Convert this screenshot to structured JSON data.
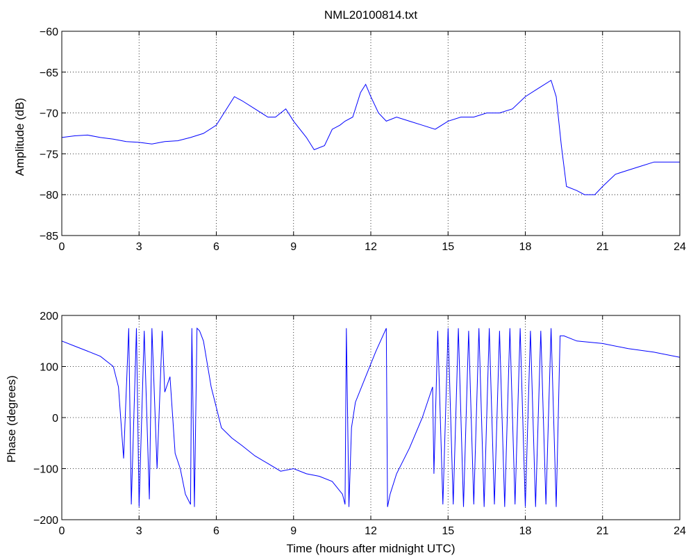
{
  "figure_title": "NML20100814.txt",
  "chart_data": [
    {
      "type": "line",
      "title": "NML20100814.txt",
      "xlabel": "",
      "ylabel": "Amplitude (dB)",
      "xlim": [
        0,
        24
      ],
      "ylim": [
        -85,
        -60
      ],
      "xticks": [
        "0",
        "3",
        "6",
        "9",
        "12",
        "15",
        "18",
        "21",
        "24"
      ],
      "yticks": [
        "-85",
        "-80",
        "-75",
        "-70",
        "-65",
        "-60"
      ],
      "grid": true,
      "line_color": "#0000ff",
      "series": [
        {
          "x": [
            0,
            0.5,
            1,
            1.5,
            2,
            2.5,
            3,
            3.5,
            4,
            4.5,
            5,
            5.5,
            6,
            6.3,
            6.7,
            7,
            7.5,
            8,
            8.3,
            8.7,
            9,
            9.5,
            9.8,
            10.2,
            10.5,
            10.8,
            11,
            11.3,
            11.6,
            11.8,
            12,
            12.3,
            12.6,
            13,
            13.5,
            14,
            14.5,
            15,
            15.5,
            16,
            16.5,
            17,
            17.5,
            18,
            18.5,
            19,
            19.2,
            19.4,
            19.6,
            20,
            20.3,
            20.7,
            21,
            21.5,
            22,
            22.5,
            23,
            23.5,
            24
          ],
          "y": [
            -73,
            -72.8,
            -72.7,
            -73,
            -73.2,
            -73.5,
            -73.6,
            -73.8,
            -73.5,
            -73.4,
            -73,
            -72.5,
            -71.5,
            -70,
            -68,
            -68.5,
            -69.5,
            -70.5,
            -70.5,
            -69.5,
            -71,
            -73,
            -74.5,
            -74,
            -72,
            -71.5,
            -71,
            -70.5,
            -67.5,
            -66.5,
            -68,
            -70,
            -71,
            -70.5,
            -71,
            -71.5,
            -72,
            -71,
            -70.5,
            -70.5,
            -70,
            -70,
            -69.5,
            -68,
            -67,
            -66,
            -68,
            -74,
            -79,
            -79.5,
            -80,
            -80,
            -79,
            -77.5,
            -77,
            -76.5,
            -76,
            -76,
            -76
          ]
        }
      ]
    },
    {
      "type": "line",
      "title": "",
      "xlabel": "Time (hours after midnight UTC)",
      "ylabel": "Phase (degrees)",
      "xlim": [
        0,
        24
      ],
      "ylim": [
        -200,
        200
      ],
      "xticks": [
        "0",
        "3",
        "6",
        "9",
        "12",
        "15",
        "18",
        "21",
        "24"
      ],
      "yticks": [
        "-200",
        "-100",
        "0",
        "100",
        "200"
      ],
      "grid": true,
      "line_color": "#0000ff",
      "series": [
        {
          "x": [
            0,
            0.5,
            1,
            1.5,
            2,
            2.2,
            2.4,
            2.6,
            2.7,
            2.9,
            3.0,
            3.2,
            3.4,
            3.5,
            3.7,
            3.9,
            4.0,
            4.2,
            4.4,
            4.6,
            4.8,
            5.0,
            5.05,
            5.15,
            5.25,
            5.35,
            5.5,
            5.8,
            6.2,
            6.6,
            7,
            7.5,
            8,
            8.5,
            9,
            9.5,
            10,
            10.5,
            10.9,
            11.0,
            11.05,
            11.15,
            11.25,
            11.4,
            11.8,
            12.2,
            12.6,
            12.65,
            12.75,
            13,
            13.5,
            14,
            14.4,
            14.45,
            14.6,
            14.8,
            15.0,
            15.2,
            15.4,
            15.6,
            15.8,
            16.0,
            16.2,
            16.4,
            16.6,
            16.8,
            17.0,
            17.2,
            17.4,
            17.6,
            17.8,
            18.0,
            18.2,
            18.4,
            18.6,
            18.8,
            19.0,
            19.2,
            19.35,
            19.5,
            20,
            21,
            22,
            23,
            24
          ],
          "y": [
            150,
            140,
            130,
            120,
            100,
            60,
            -80,
            175,
            -170,
            175,
            -175,
            170,
            -160,
            175,
            -100,
            170,
            50,
            80,
            -70,
            -100,
            -150,
            -170,
            175,
            -175,
            175,
            170,
            150,
            60,
            -20,
            -40,
            -55,
            -75,
            -90,
            -105,
            -100,
            -110,
            -115,
            -125,
            -150,
            -170,
            175,
            -175,
            -20,
            30,
            80,
            130,
            175,
            -175,
            -150,
            -110,
            -60,
            0,
            60,
            -110,
            170,
            -170,
            175,
            -170,
            175,
            -175,
            170,
            -170,
            175,
            -175,
            175,
            -170,
            170,
            -175,
            175,
            -170,
            175,
            -175,
            170,
            -175,
            170,
            -170,
            175,
            -175,
            160,
            160,
            150,
            145,
            135,
            128,
            118
          ]
        }
      ]
    }
  ]
}
